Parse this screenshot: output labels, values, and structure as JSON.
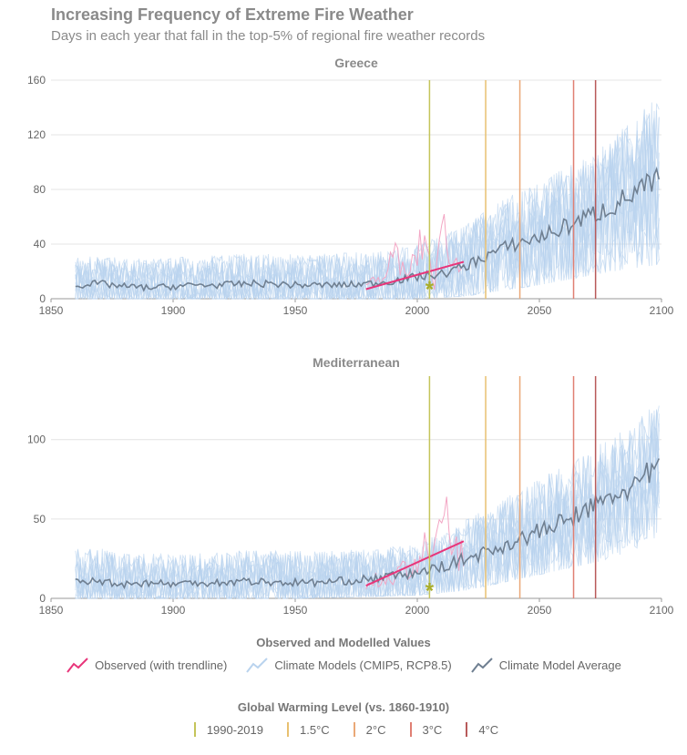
{
  "title": "Increasing Frequency of Extreme Fire Weather",
  "subtitle": "Days in each year that fall in the top-5% of regional fire weather records",
  "legend1": {
    "title": "Observed and Modelled Values",
    "items": [
      {
        "label": "Observed (with trendline)",
        "color": "#e8357a"
      },
      {
        "label": "Climate Models (CMIP5, RCP8.5)",
        "color": "#b9d3ee"
      },
      {
        "label": "Climate Model Average",
        "color": "#6f7f91"
      }
    ]
  },
  "legend2": {
    "title": "Global Warming Level (vs. 1860-1910)",
    "items": [
      {
        "label": "1990-2019",
        "color": "#c4c45a"
      },
      {
        "label": "1.5°C",
        "color": "#e8c070"
      },
      {
        "label": "2°C",
        "color": "#eaa877"
      },
      {
        "label": "3°C",
        "color": "#e07f73"
      },
      {
        "label": "4°C",
        "color": "#b85a5a"
      }
    ]
  },
  "chart_data": [
    {
      "type": "line",
      "title": "Greece",
      "xlim": [
        1850,
        2100
      ],
      "ylim": [
        0,
        160
      ],
      "xticks": [
        1850,
        1900,
        1950,
        2000,
        2050,
        2100
      ],
      "yticks": [
        0,
        40,
        80,
        120,
        160
      ],
      "warming_levels": [
        {
          "label": "1990-2019",
          "year": 2005
        },
        {
          "label": "1.5°C",
          "year": 2028
        },
        {
          "label": "2°C",
          "year": 2042
        },
        {
          "label": "3°C",
          "year": 2064
        },
        {
          "label": "4°C",
          "year": 2073
        }
      ],
      "observed_marker": {
        "year": 2005,
        "value": 7
      },
      "observed_trendline": {
        "x": [
          1979,
          2019
        ],
        "y": [
          7,
          27
        ]
      },
      "model_average": {
        "x": [
          1860,
          1870,
          1880,
          1890,
          1900,
          1910,
          1920,
          1930,
          1940,
          1950,
          1960,
          1970,
          1980,
          1990,
          2000,
          2010,
          2020,
          2030,
          2040,
          2050,
          2060,
          2070,
          2080,
          2090,
          2099
        ],
        "y": [
          10,
          11,
          9,
          8,
          9,
          10,
          10,
          11,
          11,
          10,
          10,
          10,
          11,
          13,
          16,
          18,
          24,
          33,
          40,
          45,
          52,
          60,
          68,
          78,
          87
        ]
      },
      "model_band": {
        "x": [
          1860,
          1900,
          1950,
          2000,
          2020,
          2050,
          2080,
          2099
        ],
        "upper": [
          45,
          48,
          50,
          55,
          70,
          100,
          130,
          170
        ],
        "lower": [
          0,
          0,
          0,
          0,
          2,
          10,
          20,
          25
        ]
      },
      "observed": {
        "x": [
          1979,
          1983,
          1987,
          1991,
          1995,
          1999,
          2003,
          2007,
          2011,
          2015,
          2019
        ],
        "y": [
          8,
          20,
          12,
          38,
          15,
          28,
          45,
          10,
          55,
          25,
          22
        ]
      }
    },
    {
      "type": "line",
      "title": "Mediterranean",
      "xlim": [
        1850,
        2100
      ],
      "ylim": [
        0,
        140
      ],
      "xticks": [
        1850,
        1900,
        1950,
        2000,
        2050,
        2100
      ],
      "yticks": [
        0,
        50,
        100
      ],
      "warming_levels": [
        {
          "label": "1990-2019",
          "year": 2005
        },
        {
          "label": "1.5°C",
          "year": 2028
        },
        {
          "label": "2°C",
          "year": 2042
        },
        {
          "label": "3°C",
          "year": 2064
        },
        {
          "label": "4°C",
          "year": 2073
        }
      ],
      "observed_marker": {
        "year": 2005,
        "value": 5
      },
      "observed_trendline": {
        "x": [
          1979,
          2019
        ],
        "y": [
          8,
          36
        ]
      },
      "model_average": {
        "x": [
          1860,
          1870,
          1880,
          1890,
          1900,
          1910,
          1920,
          1930,
          1940,
          1950,
          1960,
          1970,
          1980,
          1990,
          2000,
          2010,
          2020,
          2030,
          2040,
          2050,
          2060,
          2070,
          2080,
          2090,
          2099
        ],
        "y": [
          10,
          11,
          9,
          10,
          9,
          10,
          10,
          11,
          10,
          10,
          10,
          11,
          12,
          14,
          16,
          20,
          25,
          30,
          36,
          42,
          48,
          56,
          64,
          72,
          82
        ]
      },
      "model_band": {
        "x": [
          1860,
          1900,
          1950,
          2000,
          2020,
          2050,
          2080,
          2099
        ],
        "upper": [
          48,
          40,
          45,
          42,
          60,
          90,
          110,
          125
        ],
        "lower": [
          0,
          0,
          0,
          2,
          5,
          15,
          25,
          30
        ]
      },
      "observed": {
        "x": [
          1979,
          1983,
          1987,
          1991,
          1995,
          1999,
          2003,
          2007,
          2011,
          2015,
          2019
        ],
        "y": [
          8,
          12,
          10,
          14,
          18,
          22,
          30,
          28,
          55,
          30,
          28
        ]
      }
    }
  ]
}
